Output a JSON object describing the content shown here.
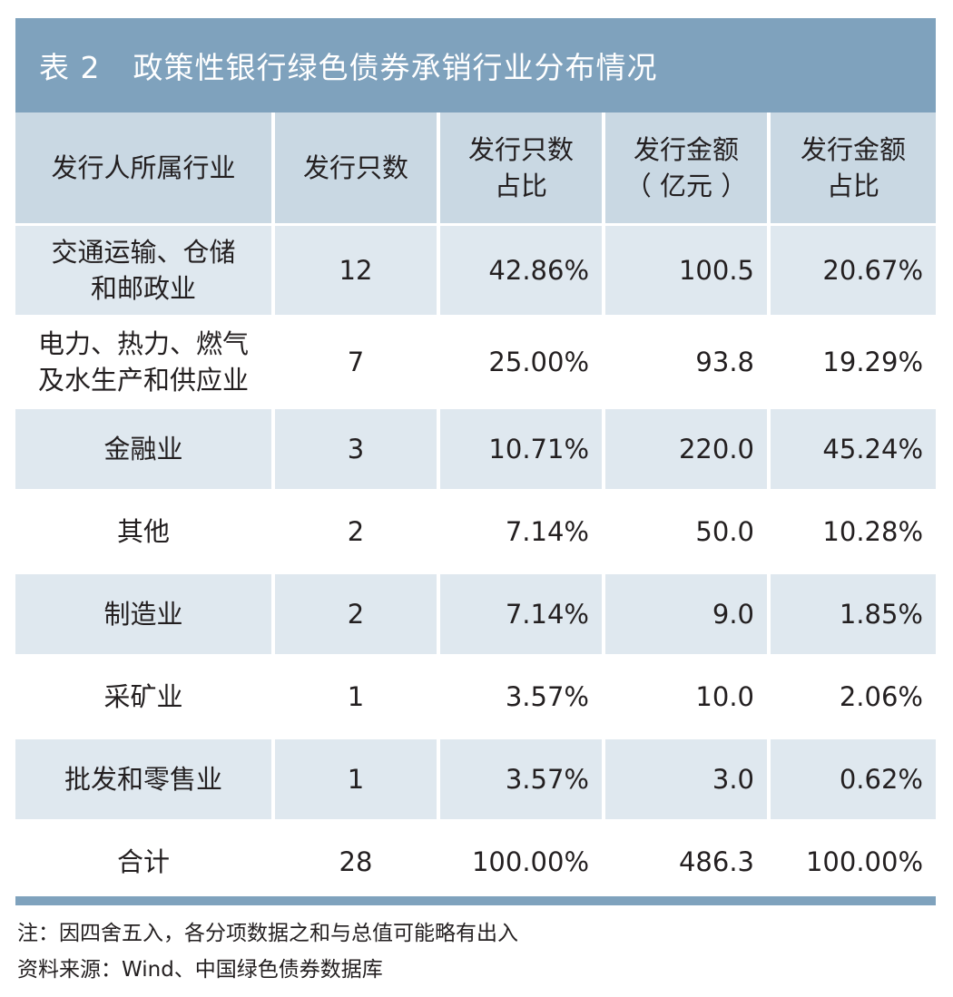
{
  "table": {
    "number": "表 2",
    "title": "政策性银行绿色债券承销行业分布情况",
    "headers": [
      {
        "line1": "发行人所属行业",
        "line2": ""
      },
      {
        "line1": "发行只数",
        "line2": ""
      },
      {
        "line1": "发行只数",
        "line2": "占比"
      },
      {
        "line1": "发行金额",
        "line2": "（ 亿元 ）"
      },
      {
        "line1": "发行金额",
        "line2": "占比"
      }
    ],
    "rows": [
      {
        "industry_line1": "交通运输、仓储",
        "industry_line2": "和邮政业",
        "count": "12",
        "count_share": "42.86%",
        "amount": "100.5",
        "amount_share": "20.67%"
      },
      {
        "industry_line1": "电力、热力、燃气",
        "industry_line2": "及水生产和供应业",
        "count": "7",
        "count_share": "25.00%",
        "amount": "93.8",
        "amount_share": "19.29%"
      },
      {
        "industry_line1": "金融业",
        "industry_line2": "",
        "count": "3",
        "count_share": "10.71%",
        "amount": "220.0",
        "amount_share": "45.24%"
      },
      {
        "industry_line1": "其他",
        "industry_line2": "",
        "count": "2",
        "count_share": "7.14%",
        "amount": "50.0",
        "amount_share": "10.28%"
      },
      {
        "industry_line1": "制造业",
        "industry_line2": "",
        "count": "2",
        "count_share": "7.14%",
        "amount": "9.0",
        "amount_share": "1.85%"
      },
      {
        "industry_line1": "采矿业",
        "industry_line2": "",
        "count": "1",
        "count_share": "3.57%",
        "amount": "10.0",
        "amount_share": "2.06%"
      },
      {
        "industry_line1": "批发和零售业",
        "industry_line2": "",
        "count": "1",
        "count_share": "3.57%",
        "amount": "3.0",
        "amount_share": "0.62%"
      }
    ],
    "total": {
      "label": "合计",
      "count": "28",
      "count_share": "100.00%",
      "amount": "486.3",
      "amount_share": "100.00%"
    }
  },
  "notes": {
    "note": "注：因四舍五入，各分项数据之和与总值可能略有出入",
    "source": "资料来源：Wind、中国绿色债券数据库"
  },
  "colors": {
    "title_bar": "#7fa2bd",
    "header_bg": "#c9d8e3",
    "shaded_row": "#dfe8ef"
  }
}
